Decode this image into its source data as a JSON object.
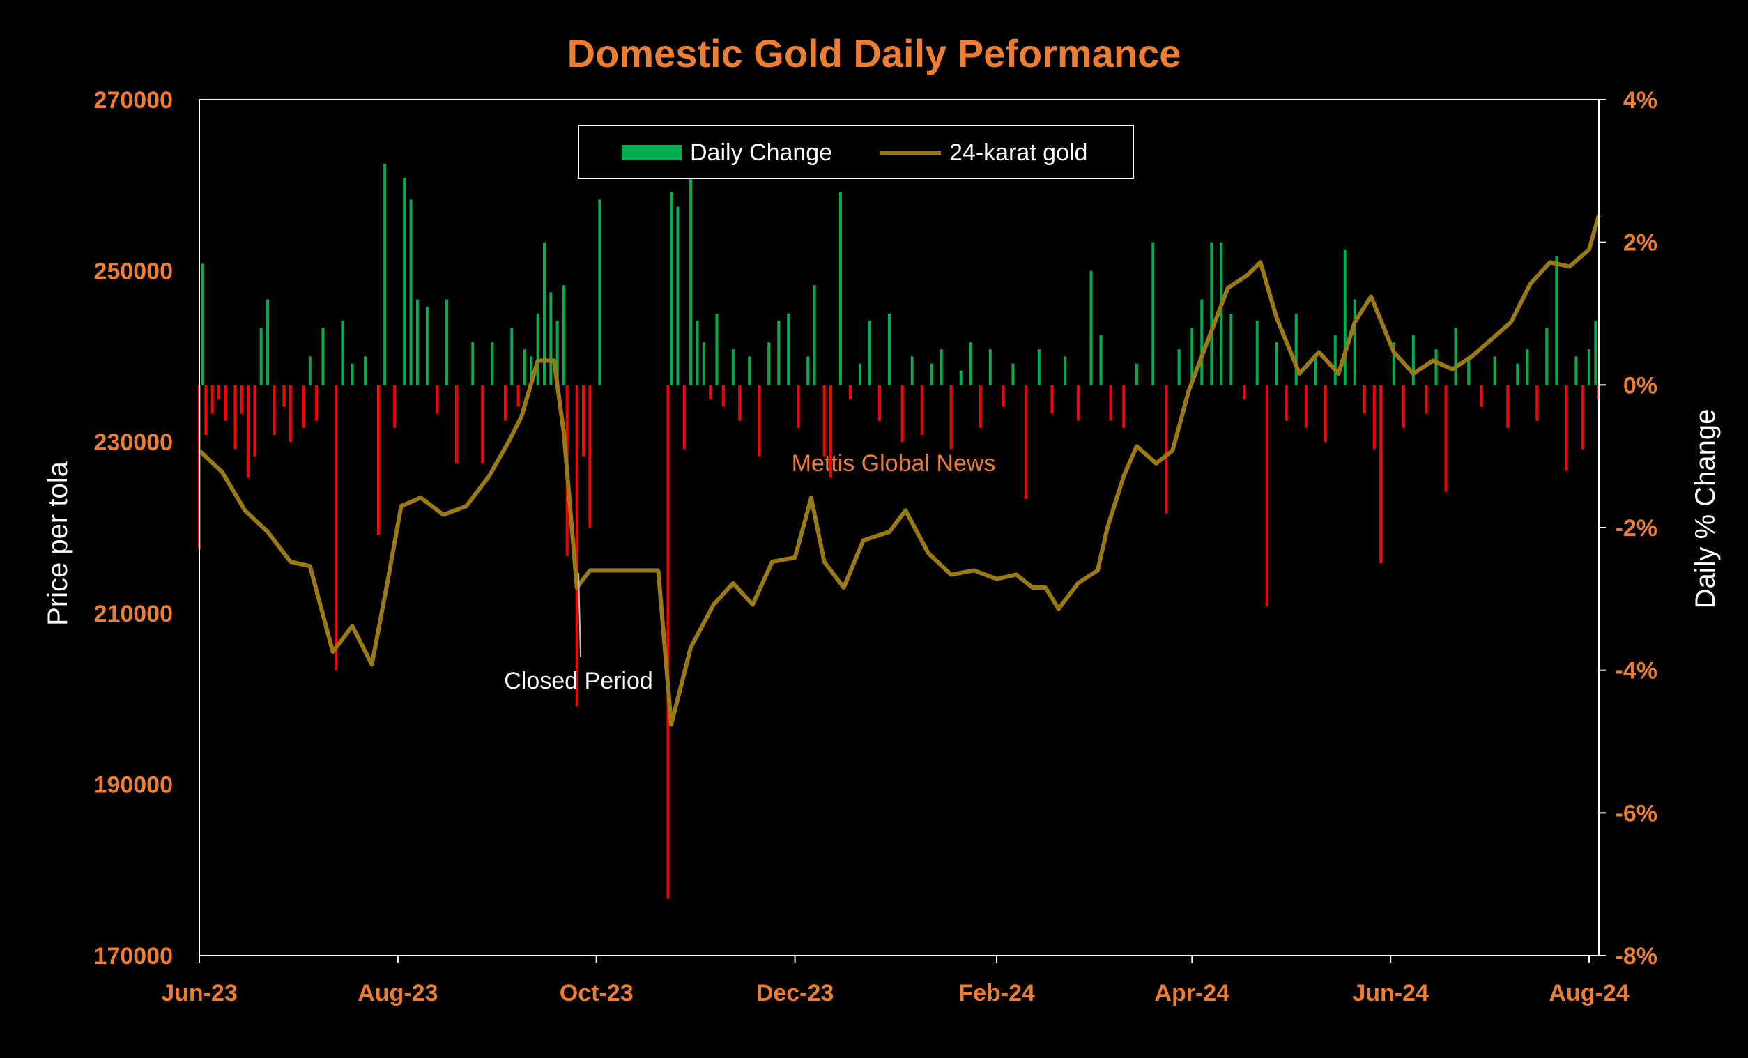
{
  "colors": {
    "background": "#000000",
    "accent": "#ED7D31",
    "positive": "#00B050",
    "negative": "#FF0000",
    "price_line": "#9C7A12",
    "axis": "#FFFFFF",
    "text_light": "#FFFFFF"
  },
  "chart_data": {
    "type": "bar+line",
    "title": "Domestic Gold Daily Peformance",
    "watermark": "Mettis Global News",
    "y_left": {
      "label": "Price per tola",
      "range": [
        170000,
        270000
      ],
      "ticks": [
        "270000",
        "250000",
        "230000",
        "210000",
        "190000",
        "170000"
      ]
    },
    "y_right": {
      "label": "Daily % Change",
      "range": [
        -8,
        4
      ],
      "ticks": [
        "4%",
        "2%",
        "0%",
        "-2%",
        "-4%",
        "-6%",
        "-8%"
      ]
    },
    "x_axis": {
      "ticks": [
        "Jun-23",
        "Aug-23",
        "Oct-23",
        "Dec-23",
        "Feb-24",
        "Apr-24",
        "Jun-24",
        "Aug-24"
      ]
    },
    "legend": {
      "position": "top-center",
      "items": [
        {
          "label": "Daily Change",
          "kind": "bar"
        },
        {
          "label": "24-karat gold",
          "kind": "line"
        }
      ]
    },
    "annotation": {
      "text": "Closed Period"
    },
    "price_series": {
      "name": "24-karat gold",
      "points": [
        [
          "2023-06-01",
          229000
        ],
        [
          "2023-06-08",
          226500
        ],
        [
          "2023-06-15",
          222000
        ],
        [
          "2023-06-22",
          219500
        ],
        [
          "2023-06-29",
          216000
        ],
        [
          "2023-07-05",
          215500
        ],
        [
          "2023-07-12",
          205500
        ],
        [
          "2023-07-18",
          208500
        ],
        [
          "2023-07-24",
          204000
        ],
        [
          "2023-07-29",
          214000
        ],
        [
          "2023-08-02",
          222500
        ],
        [
          "2023-08-08",
          223500
        ],
        [
          "2023-08-15",
          221500
        ],
        [
          "2023-08-22",
          222500
        ],
        [
          "2023-08-29",
          226000
        ],
        [
          "2023-09-04",
          230000
        ],
        [
          "2023-09-08",
          233000
        ],
        [
          "2023-09-13",
          239500
        ],
        [
          "2023-09-18",
          239500
        ],
        [
          "2023-09-21",
          231000
        ],
        [
          "2023-09-25",
          213000
        ],
        [
          "2023-09-29",
          215000
        ],
        [
          "2023-10-12",
          215000
        ],
        [
          "2023-10-20",
          215000
        ],
        [
          "2023-10-24",
          197000
        ],
        [
          "2023-10-30",
          206000
        ],
        [
          "2023-11-06",
          211000
        ],
        [
          "2023-11-12",
          213500
        ],
        [
          "2023-11-18",
          211000
        ],
        [
          "2023-11-24",
          216000
        ],
        [
          "2023-12-01",
          216500
        ],
        [
          "2023-12-06",
          223500
        ],
        [
          "2023-12-10",
          216000
        ],
        [
          "2023-12-16",
          213000
        ],
        [
          "2023-12-22",
          218500
        ],
        [
          "2023-12-30",
          219500
        ],
        [
          "2024-01-04",
          222000
        ],
        [
          "2024-01-11",
          217000
        ],
        [
          "2024-01-18",
          214500
        ],
        [
          "2024-01-25",
          215000
        ],
        [
          "2024-02-01",
          214000
        ],
        [
          "2024-02-07",
          214500
        ],
        [
          "2024-02-12",
          213000
        ],
        [
          "2024-02-16",
          213000
        ],
        [
          "2024-02-20",
          210500
        ],
        [
          "2024-02-26",
          213500
        ],
        [
          "2024-03-03",
          215000
        ],
        [
          "2024-03-06",
          220000
        ],
        [
          "2024-03-11",
          226000
        ],
        [
          "2024-03-15",
          229500
        ],
        [
          "2024-03-21",
          227500
        ],
        [
          "2024-03-26",
          229000
        ],
        [
          "2024-03-31",
          236000
        ],
        [
          "2024-04-06",
          242000
        ],
        [
          "2024-04-12",
          248000
        ],
        [
          "2024-04-18",
          249500
        ],
        [
          "2024-04-22",
          251000
        ],
        [
          "2024-04-27",
          244500
        ],
        [
          "2024-05-04",
          238000
        ],
        [
          "2024-05-10",
          240500
        ],
        [
          "2024-05-16",
          238000
        ],
        [
          "2024-05-21",
          244000
        ],
        [
          "2024-05-26",
          247000
        ],
        [
          "2024-06-02",
          240500
        ],
        [
          "2024-06-08",
          238000
        ],
        [
          "2024-06-14",
          239500
        ],
        [
          "2024-06-20",
          238500
        ],
        [
          "2024-06-26",
          240000
        ],
        [
          "2024-07-02",
          242000
        ],
        [
          "2024-07-08",
          244000
        ],
        [
          "2024-07-14",
          248500
        ],
        [
          "2024-07-20",
          251000
        ],
        [
          "2024-07-26",
          250500
        ],
        [
          "2024-08-01",
          252500
        ],
        [
          "2024-08-04",
          256500
        ]
      ]
    },
    "change_series": {
      "name": "Daily Change",
      "unit": "%",
      "points": [
        [
          "2023-06-01",
          -2.3
        ],
        [
          "2023-06-02",
          1.7
        ],
        [
          "2023-06-03",
          -0.7
        ],
        [
          "2023-06-05",
          -0.4
        ],
        [
          "2023-06-07",
          -0.2
        ],
        [
          "2023-06-09",
          -0.5
        ],
        [
          "2023-06-12",
          -0.9
        ],
        [
          "2023-06-14",
          -0.4
        ],
        [
          "2023-06-16",
          -1.3
        ],
        [
          "2023-06-18",
          -1.0
        ],
        [
          "2023-06-20",
          0.8
        ],
        [
          "2023-06-22",
          1.2
        ],
        [
          "2023-06-24",
          -0.7
        ],
        [
          "2023-06-27",
          -0.3
        ],
        [
          "2023-06-29",
          -0.8
        ],
        [
          "2023-07-03",
          -0.6
        ],
        [
          "2023-07-05",
          0.4
        ],
        [
          "2023-07-07",
          -0.5
        ],
        [
          "2023-07-09",
          0.8
        ],
        [
          "2023-07-13",
          -4.0
        ],
        [
          "2023-07-15",
          0.9
        ],
        [
          "2023-07-18",
          0.3
        ],
        [
          "2023-07-22",
          0.4
        ],
        [
          "2023-07-26",
          -2.1
        ],
        [
          "2023-07-28",
          3.1
        ],
        [
          "2023-07-31",
          -0.6
        ],
        [
          "2023-08-03",
          2.9
        ],
        [
          "2023-08-05",
          2.6
        ],
        [
          "2023-08-07",
          1.2
        ],
        [
          "2023-08-10",
          1.1
        ],
        [
          "2023-08-13",
          -0.4
        ],
        [
          "2023-08-16",
          1.2
        ],
        [
          "2023-08-19",
          -1.1
        ],
        [
          "2023-08-24",
          0.6
        ],
        [
          "2023-08-27",
          -1.1
        ],
        [
          "2023-08-30",
          0.6
        ],
        [
          "2023-09-03",
          -0.5
        ],
        [
          "2023-09-05",
          0.8
        ],
        [
          "2023-09-07",
          -0.3
        ],
        [
          "2023-09-09",
          0.5
        ],
        [
          "2023-09-11",
          0.4
        ],
        [
          "2023-09-13",
          1.0
        ],
        [
          "2023-09-15",
          2.0
        ],
        [
          "2023-09-17",
          1.3
        ],
        [
          "2023-09-19",
          0.9
        ],
        [
          "2023-09-21",
          1.4
        ],
        [
          "2023-09-22",
          -2.4
        ],
        [
          "2023-09-25",
          -4.5
        ],
        [
          "2023-09-27",
          -1.0
        ],
        [
          "2023-09-29",
          -2.0
        ],
        [
          "2023-10-02",
          2.6
        ],
        [
          "2023-10-23",
          -7.2
        ],
        [
          "2023-10-24",
          2.7
        ],
        [
          "2023-10-26",
          2.5
        ],
        [
          "2023-10-28",
          -0.9
        ],
        [
          "2023-10-30",
          3.2
        ],
        [
          "2023-11-01",
          0.9
        ],
        [
          "2023-11-03",
          0.6
        ],
        [
          "2023-11-05",
          -0.2
        ],
        [
          "2023-11-07",
          1.0
        ],
        [
          "2023-11-09",
          -0.3
        ],
        [
          "2023-11-12",
          0.5
        ],
        [
          "2023-11-14",
          -0.5
        ],
        [
          "2023-11-17",
          0.4
        ],
        [
          "2023-11-20",
          -1.0
        ],
        [
          "2023-11-23",
          0.6
        ],
        [
          "2023-11-26",
          0.9
        ],
        [
          "2023-11-29",
          1.0
        ],
        [
          "2023-12-02",
          -0.6
        ],
        [
          "2023-12-05",
          0.4
        ],
        [
          "2023-12-07",
          1.4
        ],
        [
          "2023-12-10",
          -1.0
        ],
        [
          "2023-12-12",
          -1.3
        ],
        [
          "2023-12-15",
          2.7
        ],
        [
          "2023-12-18",
          -0.2
        ],
        [
          "2023-12-21",
          0.3
        ],
        [
          "2023-12-24",
          0.9
        ],
        [
          "2023-12-27",
          -0.5
        ],
        [
          "2023-12-30",
          1.0
        ],
        [
          "2024-01-03",
          -0.8
        ],
        [
          "2024-01-06",
          0.4
        ],
        [
          "2024-01-09",
          -0.7
        ],
        [
          "2024-01-12",
          0.3
        ],
        [
          "2024-01-15",
          0.5
        ],
        [
          "2024-01-18",
          -0.9
        ],
        [
          "2024-01-21",
          0.2
        ],
        [
          "2024-01-24",
          0.6
        ],
        [
          "2024-01-27",
          -0.6
        ],
        [
          "2024-01-30",
          0.5
        ],
        [
          "2024-02-03",
          -0.3
        ],
        [
          "2024-02-06",
          0.3
        ],
        [
          "2024-02-10",
          -1.6
        ],
        [
          "2024-02-14",
          0.5
        ],
        [
          "2024-02-18",
          -0.4
        ],
        [
          "2024-02-22",
          0.4
        ],
        [
          "2024-02-26",
          -0.5
        ],
        [
          "2024-03-01",
          1.6
        ],
        [
          "2024-03-04",
          0.7
        ],
        [
          "2024-03-07",
          -0.5
        ],
        [
          "2024-03-11",
          -0.6
        ],
        [
          "2024-03-15",
          0.3
        ],
        [
          "2024-03-20",
          2.0
        ],
        [
          "2024-03-24",
          -1.8
        ],
        [
          "2024-03-28",
          0.5
        ],
        [
          "2024-04-01",
          0.8
        ],
        [
          "2024-04-04",
          1.2
        ],
        [
          "2024-04-07",
          2.0
        ],
        [
          "2024-04-10",
          2.0
        ],
        [
          "2024-04-13",
          1.0
        ],
        [
          "2024-04-17",
          -0.2
        ],
        [
          "2024-04-21",
          0.9
        ],
        [
          "2024-04-24",
          -3.1
        ],
        [
          "2024-04-27",
          0.6
        ],
        [
          "2024-04-30",
          -0.5
        ],
        [
          "2024-05-03",
          1.0
        ],
        [
          "2024-05-06",
          -0.6
        ],
        [
          "2024-05-09",
          0.4
        ],
        [
          "2024-05-12",
          -0.8
        ],
        [
          "2024-05-15",
          0.7
        ],
        [
          "2024-05-18",
          1.9
        ],
        [
          "2024-05-21",
          1.2
        ],
        [
          "2024-05-24",
          -0.4
        ],
        [
          "2024-05-27",
          -0.9
        ],
        [
          "2024-05-29",
          -2.5
        ],
        [
          "2024-06-02",
          0.6
        ],
        [
          "2024-06-05",
          -0.6
        ],
        [
          "2024-06-08",
          0.7
        ],
        [
          "2024-06-12",
          -0.4
        ],
        [
          "2024-06-15",
          0.5
        ],
        [
          "2024-06-18",
          -1.5
        ],
        [
          "2024-06-21",
          0.8
        ],
        [
          "2024-06-25",
          0.4
        ],
        [
          "2024-06-29",
          -0.3
        ],
        [
          "2024-07-03",
          0.4
        ],
        [
          "2024-07-07",
          -0.6
        ],
        [
          "2024-07-10",
          0.3
        ],
        [
          "2024-07-13",
          0.5
        ],
        [
          "2024-07-16",
          -0.5
        ],
        [
          "2024-07-19",
          0.8
        ],
        [
          "2024-07-22",
          1.8
        ],
        [
          "2024-07-25",
          -1.2
        ],
        [
          "2024-07-28",
          0.4
        ],
        [
          "2024-07-30",
          -0.9
        ],
        [
          "2024-08-01",
          0.5
        ],
        [
          "2024-08-03",
          0.9
        ],
        [
          "2024-08-04",
          -0.2
        ]
      ]
    }
  }
}
